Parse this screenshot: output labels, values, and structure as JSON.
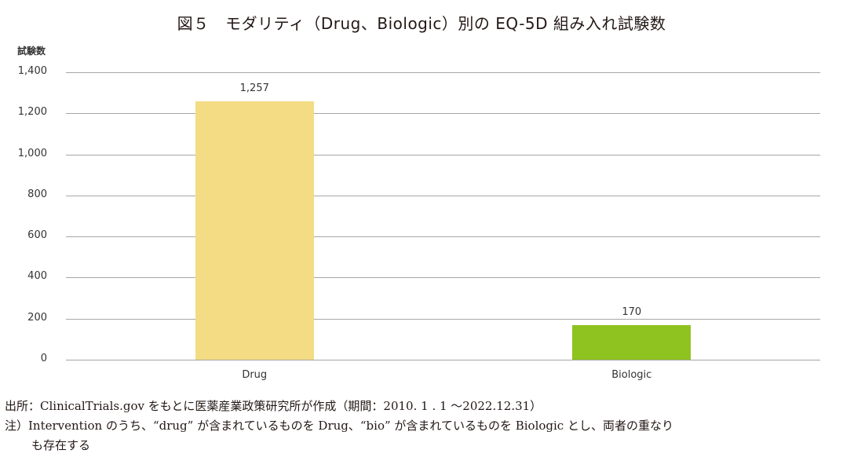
{
  "title": "図５　モダリティ（Drug、Biologic）別の EQ-5D 組み入れ試験数",
  "chart_data": {
    "type": "bar",
    "title": "図５　モダリティ（Drug、Biologic）別の EQ-5D 組み入れ試験数",
    "xlabel": "",
    "ylabel": "試験数",
    "categories": [
      "Drug",
      "Biologic"
    ],
    "values": [
      1257,
      170
    ],
    "value_labels": [
      "1,257",
      "170"
    ],
    "colors": [
      "#f4dc84",
      "#8fc31f"
    ],
    "ylim": [
      0,
      1400
    ],
    "yticks": [
      0,
      200,
      400,
      600,
      800,
      1000,
      1200,
      1400
    ],
    "ytick_labels": [
      "0",
      "200",
      "400",
      "600",
      "800",
      "1,000",
      "1,200",
      "1,400"
    ],
    "grid": true,
    "legend": null
  },
  "notes": {
    "source": "出所：ClinicalTrials.gov をもとに医薬産業政策研究所が作成（期間：2010. 1 . 1 ～2022.12.31）",
    "note_line1": "注）Intervention のうち、“drug” が含まれているものを Drug、“bio” が含まれているものを Biologic とし、両者の重なり",
    "note_line2": "も存在する"
  }
}
